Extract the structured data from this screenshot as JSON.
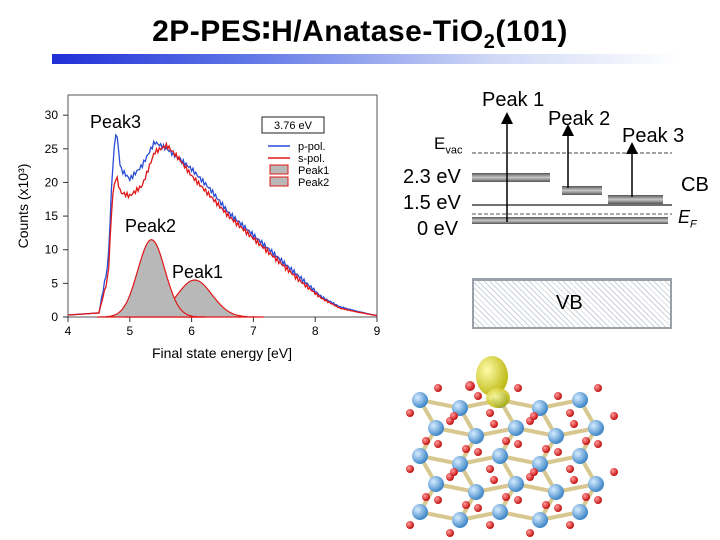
{
  "slide": {
    "title_main": "2P-PES∶H/Anatase-TiO",
    "title_sub": "2",
    "title_end": "(101)"
  },
  "chart_data": {
    "type": "line",
    "xlabel": "Final state energy [eV]",
    "ylabel": "Counts (x10³)",
    "xlim": [
      4,
      9
    ],
    "ylim": [
      0,
      33
    ],
    "xticks": [
      "4",
      "5",
      "6",
      "7",
      "8",
      "9"
    ],
    "yticks": [
      "0",
      "5",
      "10",
      "15",
      "20",
      "25",
      "30"
    ],
    "legend_position": "top-right",
    "legend_box_label": "3.76 eV",
    "series": [
      {
        "name": "p-pol.",
        "color": "#2a4cd6",
        "x": [
          4.0,
          4.5,
          4.65,
          4.72,
          4.78,
          4.85,
          5.0,
          5.2,
          5.4,
          5.6,
          5.8,
          6.0,
          6.3,
          6.6,
          6.9,
          7.2,
          7.5,
          7.8,
          8.1,
          8.4,
          8.7,
          9.0
        ],
        "y": [
          0.3,
          0.6,
          8.0,
          22.0,
          28.0,
          22.0,
          20.5,
          22.5,
          26.0,
          25.0,
          23.5,
          22.0,
          19.0,
          15.5,
          13.0,
          10.5,
          8.0,
          5.5,
          3.0,
          1.5,
          0.8,
          0.2
        ]
      },
      {
        "name": "s-pol.",
        "color": "#e01818",
        "x": [
          4.0,
          4.5,
          4.65,
          4.72,
          4.78,
          4.85,
          5.0,
          5.2,
          5.4,
          5.6,
          5.8,
          6.0,
          6.3,
          6.6,
          6.9,
          7.2,
          7.5,
          7.8,
          8.1,
          8.4,
          8.7,
          9.0
        ],
        "y": [
          0.3,
          0.6,
          6.0,
          18.0,
          21.0,
          18.5,
          18.0,
          19.5,
          24.5,
          25.5,
          23.5,
          21.0,
          18.0,
          15.0,
          12.5,
          10.0,
          7.5,
          5.0,
          2.8,
          1.3,
          0.7,
          0.2
        ]
      }
    ],
    "peaks": [
      {
        "name": "Peak1",
        "fill": "#b8b8b8",
        "center": 6.05,
        "sigma": 0.28,
        "amplitude": 5.5
      },
      {
        "name": "Peak2",
        "fill": "#b8b8b8",
        "center": 5.35,
        "sigma": 0.22,
        "amplitude": 11.5
      }
    ],
    "annotations": [
      "Peak3",
      "Peak2",
      "Peak1"
    ]
  },
  "diagram": {
    "peak1": "Peak 1",
    "peak2": "Peak 2",
    "peak3": "Peak 3",
    "evac_symbol": "E",
    "evac_sub": "vac",
    "e_23": "2.3 eV",
    "e_15": "1.5 eV",
    "e_0": "0 eV",
    "cb": "CB",
    "ef_symbol": "E",
    "ef_sub": "F",
    "vb": "VB"
  }
}
